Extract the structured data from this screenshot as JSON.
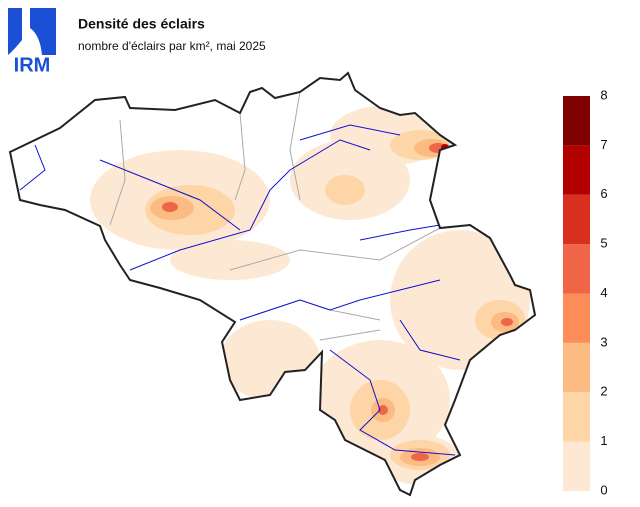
{
  "header": {
    "title": "Densité des éclairs",
    "subtitle": "nombre d'éclairs par km², mai 2025"
  },
  "logo": {
    "text": "IRM"
  },
  "legend": {
    "ticks": [
      0,
      1,
      2,
      3,
      4,
      5,
      6,
      7,
      8
    ],
    "colors": [
      "#fde8d4",
      "#fdd5a6",
      "#fdbb84",
      "#fc8d59",
      "#ef6548",
      "#d7301f",
      "#b30000",
      "#7f0000"
    ]
  }
}
